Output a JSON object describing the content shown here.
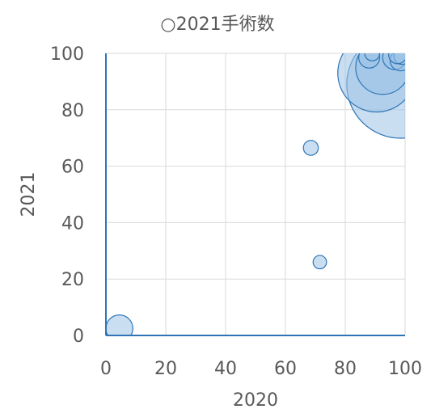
{
  "chart_data": {
    "type": "bubble",
    "title": "○2021手術数",
    "xlabel": "2020",
    "ylabel": "2021",
    "xlim": [
      0,
      100
    ],
    "ylim": [
      0,
      100
    ],
    "x_ticks": [
      "0",
      "20",
      "40",
      "60",
      "80",
      "100"
    ],
    "y_ticks": [
      "0",
      "20",
      "40",
      "60",
      "80",
      "100"
    ],
    "grid": true,
    "colors": {
      "bubble_fill": "#9dc3e6",
      "bubble_stroke": "#2e75b6",
      "axis": "#2e75b6",
      "grid": "#d9d9d9"
    },
    "points": [
      {
        "x": 4.5,
        "y": 2.5,
        "size": 9
      },
      {
        "x": 68.5,
        "y": 66.5,
        "size": 5
      },
      {
        "x": 71.5,
        "y": 26,
        "size": 4.5
      },
      {
        "x": 98.5,
        "y": 89,
        "size": 36
      },
      {
        "x": 90.5,
        "y": 93,
        "size": 26
      },
      {
        "x": 92.5,
        "y": 95,
        "size": 18
      },
      {
        "x": 88,
        "y": 98.5,
        "size": 7
      },
      {
        "x": 89,
        "y": 100,
        "size": 5
      },
      {
        "x": 96.5,
        "y": 98.5,
        "size": 8
      },
      {
        "x": 98.5,
        "y": 97.5,
        "size": 7
      },
      {
        "x": 99,
        "y": 99,
        "size": 5.5
      },
      {
        "x": 97.5,
        "y": 99.5,
        "size": 6
      }
    ]
  }
}
